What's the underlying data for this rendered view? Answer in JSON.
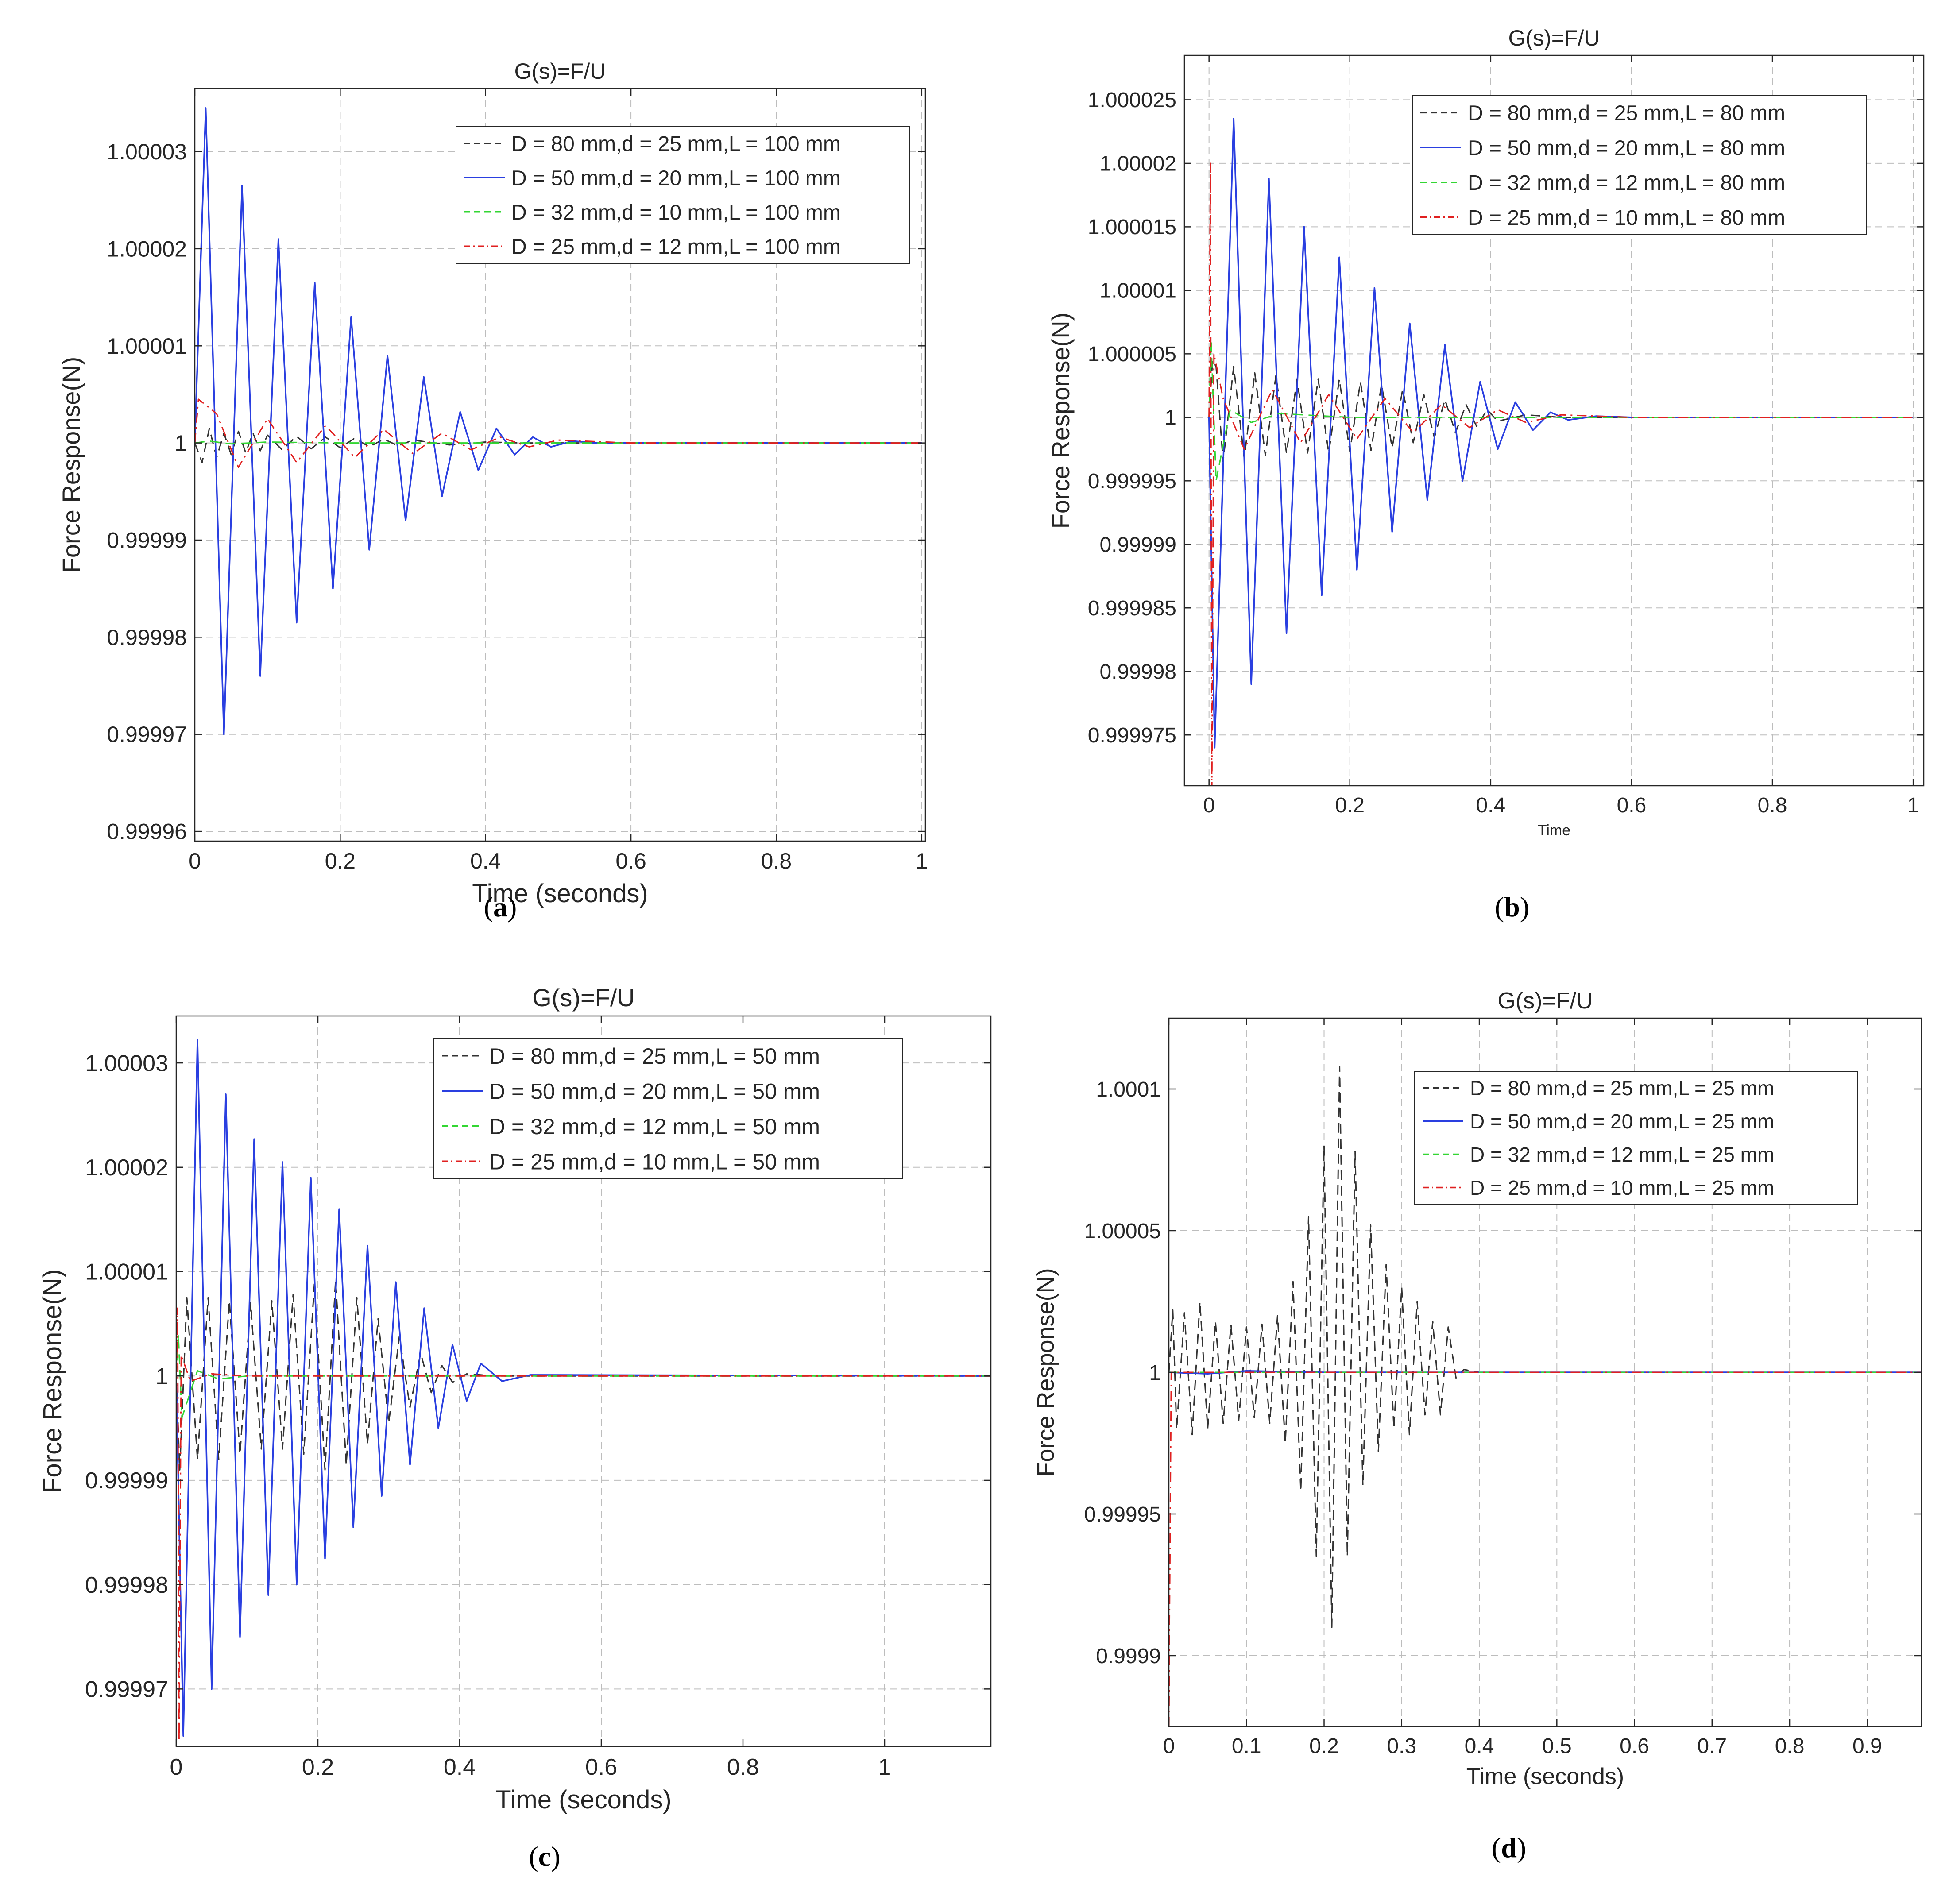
{
  "figure": {
    "colors": {
      "series_0": "#333333",
      "series_1": "#2a3fe0",
      "series_2": "#33d633",
      "series_3": "#e02020",
      "grid": "#bdbdbd",
      "axes": "#262626"
    }
  },
  "chart_data": [
    {
      "panel": "a",
      "caption_letter": "a",
      "type": "line",
      "title": "G(s)=F/U",
      "xlabel": "Time (seconds)",
      "ylabel": "Force Response(N)",
      "xlim": [
        0,
        1.005
      ],
      "ylim": [
        0.999959,
        1.0000365
      ],
      "xticks": [
        0,
        0.2,
        0.4,
        0.6,
        0.8,
        1
      ],
      "xtick_labels": [
        "0",
        "0.2",
        "0.4",
        "0.6",
        "0.8",
        "1"
      ],
      "yticks": [
        0.99996,
        0.99997,
        0.99998,
        0.99999,
        1,
        1.00001,
        1.00002,
        1.00003
      ],
      "ytick_labels": [
        "0.99996",
        "0.99997",
        "0.99998",
        "0.99999",
        "1",
        "1.00001",
        "1.00002",
        "1.00003"
      ],
      "grid": true,
      "legend_location": "top-right",
      "series": [
        {
          "name": "D = 80 mm,d = 25 mm,L = 100 mm",
          "style": "dashed",
          "x": [
            0,
            0.01,
            0.02,
            0.03,
            0.04,
            0.05,
            0.06,
            0.07,
            0.08,
            0.09,
            0.1,
            0.12,
            0.14,
            0.16,
            0.18,
            0.2,
            0.22,
            0.24,
            0.26,
            0.28,
            0.3,
            0.35,
            0.4,
            0.45,
            0.5,
            0.6,
            0.8,
            1.0
          ],
          "values": [
            1.0,
            0.999998,
            1.0000015,
            0.9999985,
            1.000001,
            0.9999988,
            1.0000012,
            0.999999,
            1.000001,
            0.9999992,
            1.0000008,
            0.9999993,
            1.0000007,
            0.9999994,
            1.0000006,
            0.9999995,
            1.0000005,
            0.9999996,
            1.0000004,
            0.9999997,
            1.0000003,
            0.9999998,
            1.0000001,
            1.0,
            1.0,
            1.0,
            1.0,
            1.0
          ]
        },
        {
          "name": "D = 50 mm,d = 20 mm,L = 100 mm",
          "style": "solid",
          "x": [
            0,
            0.015,
            0.04,
            0.065,
            0.09,
            0.115,
            0.14,
            0.165,
            0.19,
            0.215,
            0.24,
            0.265,
            0.29,
            0.315,
            0.34,
            0.365,
            0.39,
            0.415,
            0.44,
            0.465,
            0.49,
            0.52,
            0.55,
            0.6,
            1.0
          ],
          "values": [
            1.0,
            1.0000345,
            0.99997,
            1.0000265,
            0.999976,
            1.000021,
            0.9999815,
            1.0000165,
            0.999985,
            1.000013,
            0.999989,
            1.000009,
            0.999992,
            1.0000068,
            0.9999945,
            1.0000032,
            0.9999972,
            1.0000015,
            0.9999988,
            1.0000006,
            0.9999996,
            1.0000002,
            1.0,
            1.0,
            1.0
          ]
        },
        {
          "name": "D = 32 mm,d = 10 mm,L = 100 mm",
          "style": "dashed",
          "x": [
            0,
            0.02,
            0.05,
            0.1,
            0.2,
            0.4,
            0.6,
            1.0
          ],
          "values": [
            1.0,
            1.0000002,
            0.9999999,
            1.0000001,
            1.0,
            1.0,
            1.0,
            1.0
          ]
        },
        {
          "name": "D = 25 mm,d = 12 mm,L = 100 mm",
          "style": "dashdot",
          "x": [
            0,
            0.005,
            0.03,
            0.06,
            0.1,
            0.14,
            0.18,
            0.22,
            0.26,
            0.3,
            0.34,
            0.38,
            0.42,
            0.46,
            0.5,
            0.6,
            1.0
          ],
          "values": [
            1.0,
            1.0000045,
            1.000003,
            0.9999975,
            1.0000025,
            0.999998,
            1.0000018,
            0.9999985,
            1.0000014,
            0.9999989,
            1.000001,
            0.9999993,
            1.0000006,
            0.9999996,
            1.0000003,
            1.0,
            1.0
          ]
        }
      ]
    },
    {
      "panel": "b",
      "caption_letter": "b",
      "type": "line",
      "title": "G(s)=F/U",
      "xlabel": "Time",
      "ylabel": "Force Response(N)",
      "xlim": [
        -0.035,
        1.015
      ],
      "ylim": [
        0.999971,
        1.0000285
      ],
      "xticks": [
        0,
        0.2,
        0.4,
        0.6,
        0.8,
        1
      ],
      "xtick_labels": [
        "0",
        "0.2",
        "0.4",
        "0.6",
        "0.8",
        "1"
      ],
      "yticks": [
        0.999975,
        0.99998,
        0.999985,
        0.99999,
        0.999995,
        1,
        1.000005,
        1.00001,
        1.000015,
        1.00002,
        1.000025
      ],
      "ytick_labels": [
        "0.999975",
        "0.99998",
        "0.999985",
        "0.99999",
        "0.999995",
        "1",
        "1.000005",
        "1.00001",
        "1.000015",
        "1.00002",
        "1.000025"
      ],
      "grid": true,
      "legend_location": "top-right",
      "series": [
        {
          "name": "D = 80 mm,d = 25 mm,L = 80 mm",
          "style": "dashed",
          "x": [
            0,
            0.005,
            0.01,
            0.02,
            0.035,
            0.05,
            0.065,
            0.08,
            0.095,
            0.11,
            0.125,
            0.14,
            0.155,
            0.17,
            0.185,
            0.2,
            0.215,
            0.23,
            0.245,
            0.26,
            0.275,
            0.29,
            0.305,
            0.32,
            0.335,
            0.35,
            0.365,
            0.38,
            0.395,
            0.41,
            0.45,
            0.5,
            1.0
          ],
          "values": [
            1.0,
            1.0000045,
            1.000004,
            0.9999965,
            1.000004,
            0.9999968,
            1.0000035,
            0.999997,
            1.0000033,
            0.9999972,
            1.000003,
            0.9999972,
            1.000003,
            0.9999972,
            1.000003,
            0.9999973,
            1.0000028,
            0.9999974,
            1.0000026,
            0.9999976,
            1.0000022,
            0.999998,
            1.0000018,
            0.9999984,
            1.0000014,
            0.9999988,
            1.000001,
            0.9999993,
            1.0000006,
            0.9999997,
            1.0000002,
            1.0,
            1.0
          ]
        },
        {
          "name": "D = 50 mm,d = 20 mm,L = 80 mm",
          "style": "solid",
          "x": [
            0,
            0.008,
            0.035,
            0.06,
            0.085,
            0.11,
            0.135,
            0.16,
            0.185,
            0.21,
            0.235,
            0.26,
            0.285,
            0.31,
            0.335,
            0.36,
            0.385,
            0.41,
            0.435,
            0.46,
            0.485,
            0.51,
            0.55,
            0.6,
            1.0
          ],
          "values": [
            1.0,
            0.999974,
            1.0000235,
            0.999979,
            1.0000188,
            0.999983,
            1.000015,
            0.999986,
            1.0000126,
            0.999988,
            1.0000102,
            0.999991,
            1.0000074,
            0.9999935,
            1.0000057,
            0.999995,
            1.0000028,
            0.9999975,
            1.0000012,
            0.999999,
            1.0000004,
            0.9999998,
            1.0000001,
            1.0,
            1.0
          ]
        },
        {
          "name": "D = 32 mm,d = 12 mm,L = 80 mm",
          "style": "dashed",
          "x": [
            0,
            0.003,
            0.01,
            0.03,
            0.06,
            0.1,
            0.2,
            0.4,
            1.0
          ],
          "values": [
            1.0,
            1.000006,
            0.999995,
            1.0000006,
            0.9999996,
            1.0000003,
            1.0,
            1.0,
            1.0
          ]
        },
        {
          "name": "D = 25 mm,d = 10 mm,L = 80 mm",
          "style": "dashdot",
          "x": [
            0,
            0.002,
            0.004,
            0.007,
            0.02,
            0.05,
            0.09,
            0.13,
            0.17,
            0.21,
            0.25,
            0.29,
            0.33,
            0.37,
            0.41,
            0.45,
            0.5,
            0.6,
            1.0
          ],
          "values": [
            1.0,
            1.00002,
            0.99997,
            1.000005,
            1.0000015,
            0.9999975,
            1.0000022,
            0.999998,
            1.0000018,
            0.9999983,
            1.0000015,
            0.9999988,
            1.000001,
            0.9999992,
            1.0000006,
            0.9999996,
            1.0000002,
            1.0,
            1.0
          ]
        }
      ]
    },
    {
      "panel": "c",
      "caption_letter": "c",
      "type": "line",
      "title": "G(s)=F/U",
      "xlabel": "Time (seconds)",
      "ylabel": "Force Response(N)",
      "xlim": [
        0,
        1.15
      ],
      "ylim": [
        0.9999645,
        1.0000345
      ],
      "xticks": [
        0,
        0.2,
        0.4,
        0.6,
        0.8,
        1
      ],
      "xtick_labels": [
        "0",
        "0.2",
        "0.4",
        "0.6",
        "0.8",
        "1"
      ],
      "yticks": [
        0.99997,
        0.99998,
        0.99999,
        1,
        1.00001,
        1.00002,
        1.00003
      ],
      "ytick_labels": [
        "0.99997",
        "0.99998",
        "0.99999",
        "1",
        "1.00001",
        "1.00002",
        "1.00003"
      ],
      "grid": true,
      "legend_location": "top-right",
      "series": [
        {
          "name": "D = 80 mm,d = 25 mm,L = 50 mm",
          "style": "dashed",
          "x": [
            0,
            0.005,
            0.015,
            0.03,
            0.045,
            0.06,
            0.075,
            0.09,
            0.105,
            0.12,
            0.135,
            0.15,
            0.165,
            0.18,
            0.195,
            0.21,
            0.225,
            0.24,
            0.255,
            0.27,
            0.285,
            0.3,
            0.315,
            0.33,
            0.345,
            0.36,
            0.375,
            0.39,
            0.41,
            0.45,
            1.15
          ],
          "values": [
            1.0,
            0.999991,
            1.0000075,
            0.999992,
            1.0000075,
            0.999992,
            1.0000072,
            0.9999925,
            1.000007,
            0.999993,
            1.0000072,
            0.999993,
            1.0000078,
            0.9999925,
            1.0000088,
            0.999991,
            1.0000092,
            0.9999915,
            1.0000075,
            0.9999935,
            1.0000055,
            0.9999955,
            1.0000038,
            0.999997,
            1.0000022,
            0.9999984,
            1.000001,
            0.9999994,
            1.0000002,
            1.0,
            1.0
          ]
        },
        {
          "name": "D = 50 mm,d = 20 mm,L = 50 mm",
          "style": "solid",
          "x": [
            0,
            0.01,
            0.03,
            0.05,
            0.07,
            0.09,
            0.11,
            0.13,
            0.15,
            0.17,
            0.19,
            0.21,
            0.23,
            0.25,
            0.27,
            0.29,
            0.31,
            0.33,
            0.35,
            0.37,
            0.39,
            0.41,
            0.43,
            0.46,
            0.5,
            1.15
          ],
          "values": [
            1.0,
            0.9999655,
            1.0000322,
            0.99997,
            1.000027,
            0.999975,
            1.0000227,
            0.999979,
            1.0000205,
            0.99998,
            1.000019,
            0.9999825,
            1.000016,
            0.9999855,
            1.0000125,
            0.9999885,
            1.000009,
            0.9999915,
            1.0000065,
            0.999995,
            1.000003,
            0.9999976,
            1.0000012,
            0.9999995,
            1.0000001,
            1.0
          ]
        },
        {
          "name": "D = 32 mm,d = 12 mm,L = 50 mm",
          "style": "dashed",
          "x": [
            0,
            0.003,
            0.008,
            0.03,
            0.06,
            0.1,
            0.2,
            1.15
          ],
          "values": [
            1.0,
            1.000004,
            0.999996,
            1.0000005,
            0.9999997,
            1.0,
            1.0,
            1.0
          ]
        },
        {
          "name": "D = 25 mm,d = 10 mm,L = 50 mm",
          "style": "dashdot",
          "x": [
            0,
            0.002,
            0.004,
            0.007,
            0.02,
            0.05,
            0.1,
            0.2,
            1.15
          ],
          "values": [
            1.0,
            1.0000065,
            0.999965,
            1.000002,
            0.9999995,
            1.0000002,
            1.0,
            1.0,
            1.0
          ]
        }
      ]
    },
    {
      "panel": "d",
      "caption_letter": "d",
      "type": "line",
      "title": "G(s)=F/U",
      "xlabel": "Time (seconds)",
      "ylabel": "Force Response(N)",
      "xlim": [
        0,
        0.97
      ],
      "ylim": [
        0.999875,
        1.000125
      ],
      "xticks": [
        0,
        0.1,
        0.2,
        0.3,
        0.4,
        0.5,
        0.6,
        0.7,
        0.8,
        0.9
      ],
      "xtick_labels": [
        "0",
        "0.1",
        "0.2",
        "0.3",
        "0.4",
        "0.5",
        "0.6",
        "0.7",
        "0.8",
        "0.9"
      ],
      "yticks": [
        0.9999,
        0.99995,
        1,
        1.00005,
        1.0001
      ],
      "ytick_labels": [
        "0.9999",
        "0.99995",
        "1",
        "1.00005",
        "1.0001"
      ],
      "grid": true,
      "legend_location": "top-right",
      "series": [
        {
          "name": "D = 80 mm,d = 25 mm,L = 25 mm",
          "style": "dashed",
          "x": [
            0,
            0.005,
            0.01,
            0.02,
            0.03,
            0.04,
            0.05,
            0.06,
            0.07,
            0.08,
            0.09,
            0.1,
            0.11,
            0.12,
            0.13,
            0.14,
            0.15,
            0.16,
            0.17,
            0.18,
            0.19,
            0.2,
            0.21,
            0.22,
            0.23,
            0.24,
            0.25,
            0.26,
            0.27,
            0.28,
            0.29,
            0.3,
            0.31,
            0.32,
            0.33,
            0.34,
            0.35,
            0.36,
            0.37,
            0.38,
            0.4,
            0.97
          ],
          "values": [
            1.0,
            1.000022,
            0.99998,
            1.000021,
            0.999978,
            1.000025,
            0.99998,
            1.000018,
            0.999982,
            1.000017,
            0.999983,
            1.000016,
            0.999984,
            1.000017,
            0.999982,
            1.00002,
            0.999975,
            1.000032,
            0.999958,
            1.000055,
            0.999935,
            1.00008,
            0.99991,
            1.000108,
            0.999935,
            1.000078,
            0.99996,
            1.000052,
            0.999972,
            1.000038,
            0.99998,
            1.00003,
            0.999978,
            1.000025,
            0.999985,
            1.000018,
            0.999985,
            1.000016,
            0.999998,
            1.000001,
            1.0,
            1.0
          ]
        },
        {
          "name": "D = 50 mm,d = 20 mm,L = 25 mm",
          "style": "solid",
          "x": [
            0,
            0.05,
            0.1,
            0.2,
            0.4,
            0.97
          ],
          "values": [
            1.0,
            0.9999995,
            1.0000005,
            1.0,
            1.0,
            1.0
          ]
        },
        {
          "name": "D = 32 mm,d = 12 mm,L = 25 mm",
          "style": "dashed",
          "x": [
            0,
            0.1,
            0.4,
            0.97
          ],
          "values": [
            1.0,
            1.0,
            1.0,
            1.0
          ]
        },
        {
          "name": "D = 25 mm,d = 10 mm,L = 25 mm",
          "style": "dashdot",
          "x": [
            0,
            0.001,
            0.003,
            0.1,
            0.97
          ],
          "values": [
            0.999875,
            0.99992,
            1.0,
            1.0,
            1.0
          ]
        }
      ]
    }
  ]
}
